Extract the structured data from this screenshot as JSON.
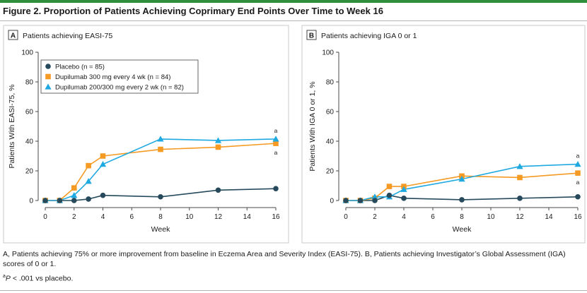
{
  "figure": {
    "title": "Figure 2. Proportion of Patients Achieving Coprimary End Points Over Time to Week 16",
    "caption": "A, Patients achieving 75% or more improvement from baseline in Eczema Area and Severity Index (EASI-75). B, Patients achieving Investigator’s Global Assessment (IGA) scores of 0 or 1.",
    "footnote_marker": "a",
    "footnote_p": "P",
    "footnote_text": " < .001 vs placebo."
  },
  "colors": {
    "placebo": "#264a5c",
    "q4w": "#f59a23",
    "q2w": "#1fa9e1",
    "axis": "#4a4a4a"
  },
  "chart_data": [
    {
      "type": "line",
      "panel_letter": "A",
      "panel_title": "Patients achieving EASI-75",
      "xlabel": "Week",
      "ylabel": "Patients With EASI-75, %",
      "xlim": [
        0,
        16
      ],
      "ylim": [
        0,
        100
      ],
      "xticks": [
        0,
        2,
        4,
        6,
        8,
        10,
        12,
        14,
        16
      ],
      "yticks": [
        0,
        20,
        40,
        60,
        80,
        100
      ],
      "grid": false,
      "legend_position": "top-left",
      "series": [
        {
          "key": "placebo",
          "name": "Placebo (n = 85)",
          "marker": "circle",
          "x": [
            0,
            1,
            2,
            3,
            4,
            8,
            12,
            16
          ],
          "y": [
            0,
            0,
            0,
            1,
            3.5,
            2.5,
            7,
            8
          ]
        },
        {
          "key": "q4w",
          "name": "Dupilumab 300 mg every 4 wk (n = 84)",
          "marker": "square",
          "x": [
            0,
            1,
            2,
            3,
            4,
            8,
            12,
            16
          ],
          "y": [
            0,
            0,
            8.5,
            23.5,
            30,
            34.5,
            36,
            38.5
          ]
        },
        {
          "key": "q2w",
          "name": "Dupilumab 200/300 mg every 2 wk (n = 82)",
          "marker": "triangle",
          "x": [
            0,
            1,
            2,
            3,
            4,
            8,
            12,
            16
          ],
          "y": [
            0,
            0,
            3.5,
            13,
            24.5,
            41.5,
            40.5,
            41.5
          ]
        }
      ],
      "annotations": [
        {
          "text": "a",
          "x": 16,
          "series": "q2w",
          "place": "above"
        },
        {
          "text": "a",
          "x": 16,
          "series": "q4w",
          "place": "below"
        }
      ]
    },
    {
      "type": "line",
      "panel_letter": "B",
      "panel_title": "Patients achieving IGA 0 or 1",
      "xlabel": "Week",
      "ylabel": "Patients With IGA 0 or 1, %",
      "xlim": [
        0,
        16
      ],
      "ylim": [
        0,
        100
      ],
      "xticks": [
        0,
        2,
        4,
        6,
        8,
        10,
        12,
        14,
        16
      ],
      "yticks": [
        0,
        20,
        40,
        60,
        80,
        100
      ],
      "grid": false,
      "legend_position": "none",
      "series": [
        {
          "key": "placebo",
          "name": "Placebo (n = 85)",
          "marker": "circle",
          "x": [
            0,
            1,
            2,
            3,
            4,
            8,
            12,
            16
          ],
          "y": [
            0,
            0,
            0,
            3.5,
            1.5,
            0.5,
            1.5,
            2.5
          ]
        },
        {
          "key": "q4w",
          "name": "Dupilumab 300 mg every 4 wk (n = 84)",
          "marker": "square",
          "x": [
            0,
            1,
            2,
            3,
            4,
            8,
            12,
            16
          ],
          "y": [
            0,
            0,
            1.5,
            9.5,
            9.5,
            16.5,
            15.5,
            18.5
          ]
        },
        {
          "key": "q2w",
          "name": "Dupilumab 200/300 mg every 2 wk (n = 82)",
          "marker": "triangle",
          "x": [
            0,
            1,
            2,
            3,
            4,
            8,
            12,
            16
          ],
          "y": [
            0,
            0,
            2.5,
            2.5,
            7.5,
            14.5,
            23,
            24.5
          ]
        }
      ],
      "annotations": [
        {
          "text": "a",
          "x": 16,
          "series": "q2w",
          "place": "above"
        },
        {
          "text": "a",
          "x": 16,
          "series": "q4w",
          "place": "below"
        }
      ]
    }
  ]
}
